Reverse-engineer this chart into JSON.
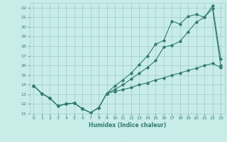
{
  "xlabel": "Humidex (Indice chaleur)",
  "xlim": [
    -0.5,
    23.5
  ],
  "ylim": [
    11,
    22.5
  ],
  "yticks": [
    11,
    12,
    13,
    14,
    15,
    16,
    17,
    18,
    19,
    20,
    21,
    22
  ],
  "xticks": [
    0,
    1,
    2,
    3,
    4,
    5,
    6,
    7,
    8,
    9,
    10,
    11,
    12,
    13,
    14,
    15,
    16,
    17,
    18,
    19,
    20,
    21,
    22,
    23
  ],
  "line_color": "#2e7d6e",
  "bg_color": "#c8ece8",
  "grid_color": "#a0ccc8",
  "line1_x": [
    0,
    1,
    2,
    3,
    4,
    5,
    6,
    7,
    8,
    9,
    10,
    11,
    12,
    13,
    14,
    15,
    16,
    17,
    18,
    19,
    20,
    21,
    22,
    23
  ],
  "line1_y": [
    13.9,
    13.1,
    12.6,
    11.8,
    12.0,
    12.1,
    11.5,
    11.1,
    11.6,
    13.1,
    13.3,
    13.5,
    13.7,
    14.0,
    14.2,
    14.5,
    14.7,
    15.0,
    15.2,
    15.5,
    15.7,
    16.0,
    16.2,
    15.8
  ],
  "line2_x": [
    0,
    1,
    2,
    3,
    4,
    5,
    6,
    7,
    8,
    9,
    10,
    11,
    12,
    13,
    14,
    15,
    16,
    17,
    18,
    19,
    20,
    21,
    22,
    23
  ],
  "line2_y": [
    13.9,
    13.1,
    12.6,
    11.8,
    12.0,
    12.1,
    11.5,
    11.1,
    11.6,
    13.1,
    13.5,
    14.0,
    14.6,
    15.2,
    15.8,
    16.5,
    17.9,
    18.1,
    18.5,
    19.5,
    20.5,
    21.0,
    21.9,
    16.0
  ],
  "line3_x": [
    0,
    1,
    2,
    3,
    4,
    5,
    6,
    7,
    8,
    9,
    10,
    11,
    12,
    13,
    14,
    15,
    16,
    17,
    18,
    19,
    20,
    21,
    22,
    23
  ],
  "line3_y": [
    13.9,
    13.1,
    12.6,
    11.8,
    12.0,
    12.1,
    11.5,
    11.1,
    11.6,
    13.1,
    13.9,
    14.5,
    15.2,
    16.1,
    17.0,
    18.2,
    18.6,
    20.6,
    20.3,
    21.1,
    21.3,
    21.0,
    22.2,
    16.7
  ]
}
